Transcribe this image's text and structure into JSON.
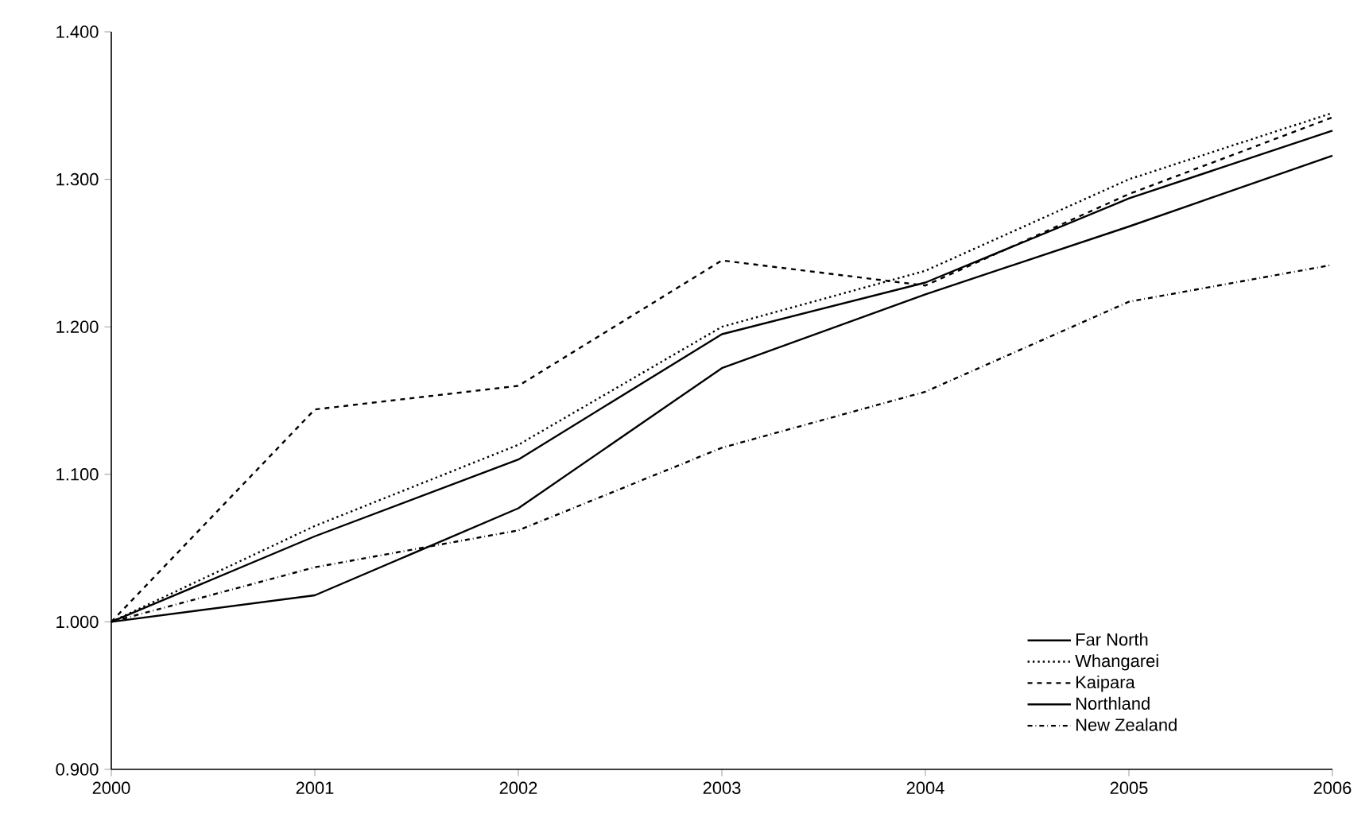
{
  "chart_data": {
    "type": "line",
    "x": [
      2000,
      2001,
      2002,
      2003,
      2004,
      2005,
      2006
    ],
    "xlim": [
      2000,
      2006
    ],
    "xticks": [
      2000,
      2001,
      2002,
      2003,
      2004,
      2005,
      2006
    ],
    "ylim": [
      0.9,
      1.4
    ],
    "yticks": [
      {
        "value": 0.9,
        "label": "0.900"
      },
      {
        "value": 1.0,
        "label": "1.000"
      },
      {
        "value": 1.1,
        "label": "1.100"
      },
      {
        "value": 1.2,
        "label": "1.200"
      },
      {
        "value": 1.3,
        "label": "1.300"
      },
      {
        "value": 1.4,
        "label": "1.400"
      }
    ],
    "legend": "bottom right",
    "series": [
      {
        "name": "Far North",
        "color": "#000000",
        "line_style": "solid",
        "values": [
          1.0,
          1.018,
          1.077,
          1.172,
          1.222,
          1.268,
          1.316
        ]
      },
      {
        "name": "Whangarei",
        "color": "#000000",
        "line_style": "dotted",
        "values": [
          1.0,
          1.065,
          1.12,
          1.2,
          1.238,
          1.3,
          1.345
        ]
      },
      {
        "name": "Kaipara",
        "color": "#000000",
        "line_style": "dashed",
        "values": [
          1.0,
          1.144,
          1.16,
          1.245,
          1.228,
          1.29,
          1.342
        ]
      },
      {
        "name": "Northland",
        "color": "#000000",
        "line_style": "solid",
        "values": [
          1.0,
          1.058,
          1.11,
          1.195,
          1.23,
          1.287,
          1.333
        ]
      },
      {
        "name": "New Zealand",
        "color": "#000000",
        "line_style": "dashdot",
        "values": [
          1.0,
          1.037,
          1.062,
          1.118,
          1.156,
          1.217,
          1.242
        ]
      }
    ]
  }
}
